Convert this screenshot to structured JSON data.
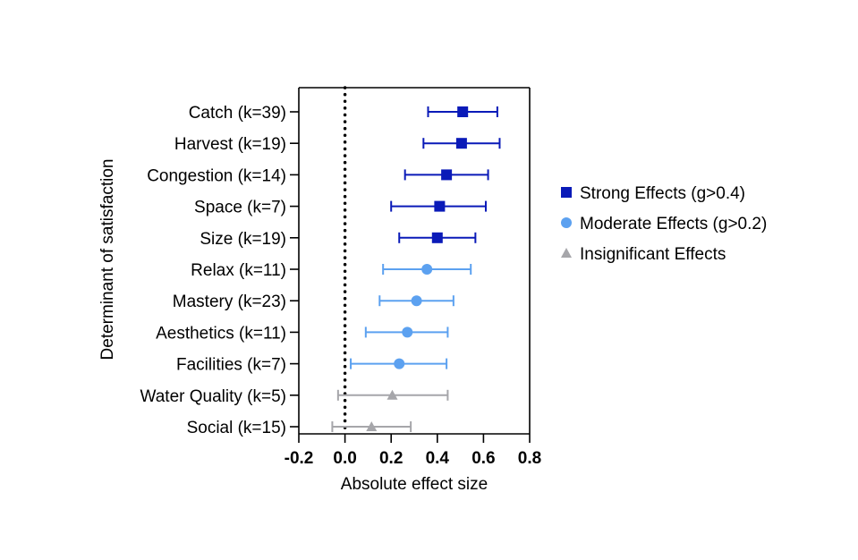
{
  "chart_data": {
    "type": "scatter",
    "subtype": "forest-plot",
    "xlabel": "Absolute effect size",
    "ylabel": "Determinant of satisfaction",
    "xlim": [
      -0.2,
      0.8
    ],
    "xticks": [
      "-0.2",
      "0.0",
      "0.2",
      "0.4",
      "0.6",
      "0.8"
    ],
    "tick_values": [
      -0.2,
      0.0,
      0.2,
      0.4,
      0.6,
      0.8
    ],
    "reference_line": 0.0,
    "grid": false,
    "legend_position": "right",
    "legend": [
      {
        "key": "strong",
        "label": "Strong Effects (g>0.4)",
        "marker": "square",
        "color": "#0a1ab8"
      },
      {
        "key": "moderate",
        "label": "Moderate Effects (g>0.2)",
        "marker": "circle",
        "color": "#5ca1f0"
      },
      {
        "key": "insignificant",
        "label": "Insignificant Effects",
        "marker": "triangle",
        "color": "#a6a6aa"
      }
    ],
    "items": [
      {
        "label": "Catch (k=39)",
        "value": 0.51,
        "low": 0.36,
        "high": 0.66,
        "group": "strong"
      },
      {
        "label": "Harvest (k=19)",
        "value": 0.505,
        "low": 0.34,
        "high": 0.67,
        "group": "strong"
      },
      {
        "label": "Congestion (k=14)",
        "value": 0.44,
        "low": 0.26,
        "high": 0.62,
        "group": "strong"
      },
      {
        "label": "Space (k=7)",
        "value": 0.41,
        "low": 0.2,
        "high": 0.61,
        "group": "strong"
      },
      {
        "label": "Size (k=19)",
        "value": 0.4,
        "low": 0.235,
        "high": 0.565,
        "group": "strong"
      },
      {
        "label": "Relax (k=11)",
        "value": 0.355,
        "low": 0.165,
        "high": 0.545,
        "group": "moderate"
      },
      {
        "label": "Mastery (k=23)",
        "value": 0.31,
        "low": 0.15,
        "high": 0.47,
        "group": "moderate"
      },
      {
        "label": "Aesthetics (k=11)",
        "value": 0.27,
        "low": 0.09,
        "high": 0.445,
        "group": "moderate"
      },
      {
        "label": "Facilities (k=7)",
        "value": 0.235,
        "low": 0.025,
        "high": 0.44,
        "group": "moderate"
      },
      {
        "label": "Water Quality (k=5)",
        "value": 0.205,
        "low": -0.03,
        "high": 0.445,
        "group": "insignificant"
      },
      {
        "label": "Social (k=15)",
        "value": 0.115,
        "low": -0.055,
        "high": 0.285,
        "group": "insignificant"
      }
    ]
  }
}
